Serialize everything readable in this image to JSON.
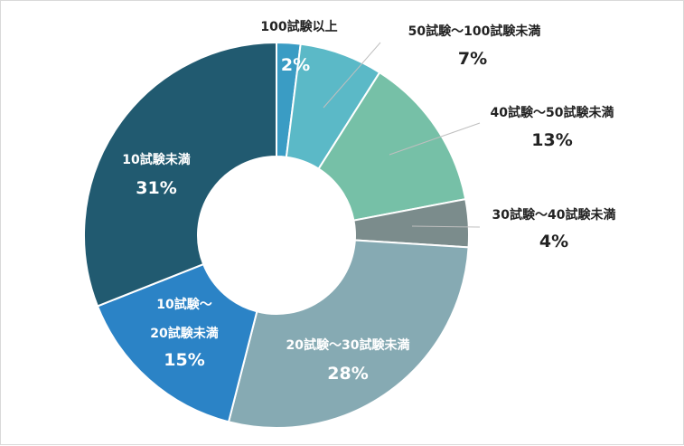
{
  "chart_data": {
    "type": "pie",
    "variant": "donut",
    "title": "",
    "categories": [
      "100試験以上",
      "50試験～100試験未満",
      "40試験～50試験未満",
      "30試験～40試験未満",
      "20試験～30試験未満",
      "10試験～20試験未満",
      "10試験未満"
    ],
    "values": [
      2,
      7,
      13,
      4,
      28,
      15,
      31
    ],
    "value_labels": [
      "2%",
      "7%",
      "13%",
      "4%",
      "28%",
      "15%",
      "31%"
    ],
    "colors": [
      "#3a9cc4",
      "#5bb9c7",
      "#76c0a7",
      "#7b8c8c",
      "#86aab3",
      "#2b83c6",
      "#215a70"
    ],
    "legend": "none"
  }
}
